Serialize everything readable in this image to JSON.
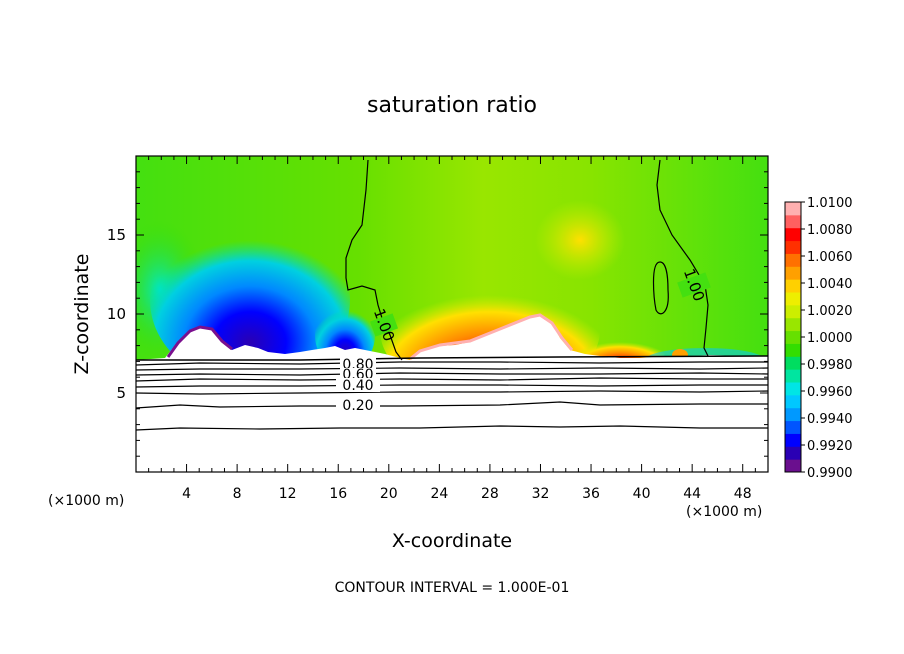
{
  "chart_data": {
    "type": "heatmap",
    "title": "saturation ratio",
    "xlabel": "X-coordinate",
    "ylabel": "Z-coordinate",
    "x_unit_left": "(×1000 m)",
    "x_unit_right": "(×1000 m)",
    "footer": "CONTOUR INTERVAL = 1.000E-01",
    "xlim": [
      0,
      50
    ],
    "ylim": [
      0,
      20
    ],
    "x_ticks": [
      4,
      8,
      12,
      16,
      20,
      24,
      28,
      32,
      36,
      40,
      44,
      48
    ],
    "y_ticks": [
      5,
      10,
      15
    ],
    "colorbar": {
      "levels": [
        0.99,
        0.992,
        0.994,
        0.996,
        0.998,
        1.0,
        1.002,
        1.004,
        1.006,
        1.008,
        1.01
      ],
      "labels": [
        "0.9900",
        "0.9920",
        "0.9940",
        "0.9960",
        "0.9980",
        "1.0000",
        "1.0020",
        "1.0040",
        "1.0060",
        "1.0080",
        "1.0100"
      ],
      "colors": [
        "#6a0f8e",
        "#2a00b4",
        "#0000ff",
        "#0055ff",
        "#0099ff",
        "#00c8ff",
        "#00e5e5",
        "#00e5a0",
        "#00dd60",
        "#33dd00",
        "#66e000",
        "#99e600",
        "#ccee00",
        "#eeee00",
        "#ffd000",
        "#ffa000",
        "#ff7000",
        "#ff3000",
        "#ff0000",
        "#ff6060",
        "#ffb0b0"
      ]
    },
    "contour_labels": [
      "1.00",
      "1.00",
      "0.80",
      "0.60",
      "0.40",
      "0.20"
    ]
  },
  "colors": {
    "background": "#ffffff",
    "frame": "#000000"
  }
}
